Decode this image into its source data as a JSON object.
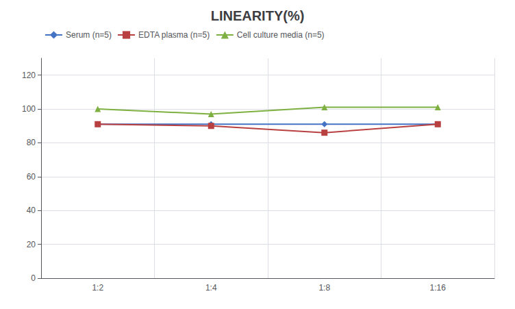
{
  "chart_data": {
    "type": "line",
    "title": "LINEARITY(%)",
    "categories": [
      "1:2",
      "1:4",
      "1:8",
      "1:16"
    ],
    "series": [
      {
        "name": "Serum (n=5)",
        "color": "#4472C4",
        "marker": "diamond",
        "values": [
          91,
          91,
          91,
          91
        ]
      },
      {
        "name": "EDTA plasma (n=5)",
        "color": "#B94040",
        "marker": "square",
        "values": [
          91,
          90,
          86,
          91
        ]
      },
      {
        "name": "Cell culture media (n=5)",
        "color": "#7DB040",
        "marker": "triangle",
        "values": [
          100,
          97,
          101,
          101
        ]
      }
    ],
    "ylim": [
      0,
      130
    ],
    "yticks": [
      0,
      20,
      40,
      60,
      80,
      100,
      120
    ],
    "grid": true,
    "legend": "upper left"
  }
}
